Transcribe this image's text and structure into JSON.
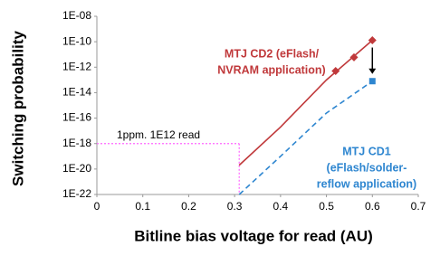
{
  "chart_data": {
    "type": "line",
    "y_log": true,
    "x_label": "Bitline bias voltage for read (AU)",
    "y_label": "Switching probability",
    "xlim": [
      0,
      0.7
    ],
    "xticks": [
      0,
      0.1,
      0.2,
      0.3,
      0.4,
      0.5,
      0.6,
      0.7
    ],
    "ylim": [
      1e-22,
      1e-08
    ],
    "yticks": [
      {
        "value": 1e-22,
        "label": "1E-22"
      },
      {
        "value": 1e-20,
        "label": "1E-20"
      },
      {
        "value": 1e-18,
        "label": "1E-18"
      },
      {
        "value": 1e-16,
        "label": "1E-16"
      },
      {
        "value": 1e-14,
        "label": "1E-14"
      },
      {
        "value": 1e-12,
        "label": "1E-12"
      },
      {
        "value": 1e-10,
        "label": "1E-10"
      },
      {
        "value": 1e-08,
        "label": "1E-08"
      }
    ],
    "series": [
      {
        "name_lines": [
          "MTJ CD2 (eFlash/",
          "NVRAM application)"
        ],
        "color": "#c0393b",
        "dashed": false,
        "x": [
          0.31,
          0.4,
          0.5,
          0.6
        ],
        "values": [
          2e-20,
          2e-17,
          1e-13,
          1.3e-10
        ],
        "markers": {
          "shape": "diamond",
          "x": [
            0.52,
            0.56,
            0.6
          ],
          "values": [
            5e-13,
            6e-12,
            1.3e-10
          ]
        }
      },
      {
        "name_lines": [
          "MTJ CD1",
          "(eFlash/solder-",
          "reflow application)"
        ],
        "color": "#2e86d0",
        "dashed": true,
        "x": [
          0.31,
          0.4,
          0.5,
          0.6
        ],
        "values": [
          1e-22,
          1e-19,
          2.5e-16,
          8e-14
        ],
        "markers": {
          "shape": "square",
          "x": [
            0.6
          ],
          "values": [
            8e-14
          ]
        }
      }
    ],
    "threshold": {
      "x": 0.31,
      "y": 1e-18,
      "label": "1ppm. 1E12 read",
      "color": "#ff66ff"
    }
  }
}
